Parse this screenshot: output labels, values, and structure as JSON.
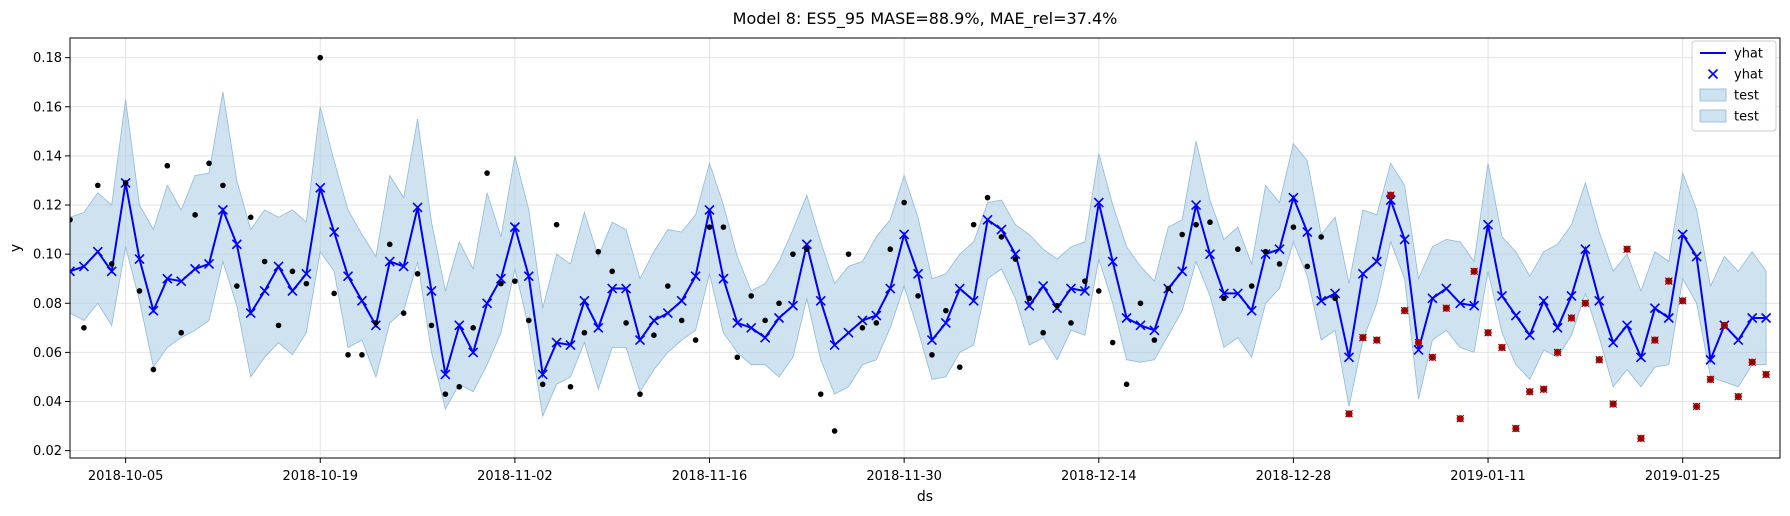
{
  "chart_data": {
    "type": "line",
    "title": "Model 8: ES5_95 MASE=88.9%, MAE_rel=37.4%",
    "xlabel": "ds",
    "ylabel": "y",
    "x_range": [
      "2018-10-01",
      "2019-02-01"
    ],
    "y_range": [
      0.017,
      0.188
    ],
    "x_tick_labels": [
      "2018-10-05",
      "2018-10-19",
      "2018-11-02",
      "2018-11-16",
      "2018-11-30",
      "2018-12-14",
      "2018-12-28",
      "2019-01-11",
      "2019-01-25"
    ],
    "y_ticks": [
      0.02,
      0.04,
      0.06,
      0.08,
      0.1,
      0.12,
      0.14,
      0.16,
      0.18
    ],
    "y_tick_labels": [
      "0.02",
      "0.04",
      "0.06",
      "0.08",
      "0.10",
      "0.12",
      "0.14",
      "0.16",
      "0.18"
    ],
    "grid": true,
    "legend_position": "top-right",
    "legend": [
      {
        "label": "yhat",
        "kind": "line"
      },
      {
        "label": "yhat",
        "kind": "marker-x"
      },
      {
        "label": "test",
        "kind": "band"
      },
      {
        "label": "test",
        "kind": "band"
      }
    ],
    "colors": {
      "forecast": "#0000ff",
      "band_fill": "#a6cbe3",
      "band_edge": "#8fbad8",
      "actual": "#000000",
      "test_marker": "#cc0000",
      "grid": "#e3e3e3"
    },
    "start_date": "2018-10-01",
    "yhat": [
      0.093,
      0.095,
      0.101,
      0.093,
      0.129,
      0.098,
      0.077,
      0.09,
      0.089,
      0.094,
      0.096,
      0.118,
      0.104,
      0.076,
      0.085,
      0.095,
      0.085,
      0.092,
      0.127,
      0.109,
      0.091,
      0.081,
      0.071,
      0.097,
      0.095,
      0.119,
      0.085,
      0.051,
      0.071,
      0.06,
      0.08,
      0.09,
      0.111,
      0.091,
      0.051,
      0.064,
      0.063,
      0.081,
      0.07,
      0.086,
      0.086,
      0.065,
      0.073,
      0.076,
      0.081,
      0.091,
      0.118,
      0.09,
      0.072,
      0.07,
      0.066,
      0.074,
      0.079,
      0.104,
      0.081,
      0.063,
      0.068,
      0.073,
      0.075,
      0.086,
      0.108,
      0.092,
      0.065,
      0.072,
      0.086,
      0.081,
      0.114,
      0.11,
      0.1,
      0.079,
      0.087,
      0.078,
      0.086,
      0.085,
      0.121,
      0.097,
      0.074,
      0.071,
      0.069,
      0.086,
      0.093,
      0.12,
      0.1,
      0.084,
      0.084,
      0.077,
      0.1,
      0.102,
      0.123,
      0.109,
      0.081,
      0.084,
      0.058,
      0.092,
      0.097,
      0.122,
      0.106,
      0.061,
      0.082,
      0.086,
      0.08,
      0.079,
      0.112,
      0.083,
      0.075,
      0.067,
      0.081,
      0.07,
      0.083,
      0.102,
      0.081,
      0.064,
      0.071,
      0.058,
      0.078,
      0.074,
      0.108,
      0.099,
      0.057,
      0.071,
      0.065,
      0.074,
      0.074
    ],
    "upper": [
      0.115,
      0.117,
      0.125,
      0.12,
      0.163,
      0.12,
      0.11,
      0.128,
      0.118,
      0.132,
      0.133,
      0.166,
      0.13,
      0.11,
      0.118,
      0.115,
      0.118,
      0.113,
      0.16,
      0.138,
      0.118,
      0.108,
      0.099,
      0.132,
      0.123,
      0.155,
      0.113,
      0.085,
      0.105,
      0.094,
      0.125,
      0.107,
      0.14,
      0.118,
      0.078,
      0.1,
      0.096,
      0.117,
      0.099,
      0.113,
      0.11,
      0.09,
      0.101,
      0.11,
      0.109,
      0.116,
      0.137,
      0.12,
      0.099,
      0.085,
      0.088,
      0.097,
      0.11,
      0.124,
      0.105,
      0.088,
      0.095,
      0.097,
      0.107,
      0.114,
      0.132,
      0.115,
      0.09,
      0.092,
      0.1,
      0.105,
      0.121,
      0.122,
      0.112,
      0.108,
      0.102,
      0.098,
      0.103,
      0.105,
      0.141,
      0.12,
      0.103,
      0.095,
      0.089,
      0.111,
      0.114,
      0.146,
      0.122,
      0.106,
      0.111,
      0.096,
      0.128,
      0.121,
      0.145,
      0.138,
      0.108,
      0.115,
      0.088,
      0.118,
      0.116,
      0.137,
      0.128,
      0.09,
      0.103,
      0.106,
      0.105,
      0.097,
      0.137,
      0.107,
      0.101,
      0.091,
      0.101,
      0.104,
      0.112,
      0.129,
      0.109,
      0.093,
      0.1,
      0.085,
      0.101,
      0.097,
      0.133,
      0.118,
      0.087,
      0.099,
      0.093,
      0.101,
      0.093
    ],
    "lower": [
      0.076,
      0.073,
      0.08,
      0.071,
      0.103,
      0.081,
      0.054,
      0.062,
      0.066,
      0.069,
      0.073,
      0.097,
      0.079,
      0.05,
      0.058,
      0.064,
      0.059,
      0.068,
      0.101,
      0.093,
      0.062,
      0.065,
      0.05,
      0.072,
      0.077,
      0.097,
      0.06,
      0.037,
      0.047,
      0.044,
      0.055,
      0.068,
      0.094,
      0.07,
      0.034,
      0.047,
      0.05,
      0.064,
      0.045,
      0.062,
      0.062,
      0.044,
      0.053,
      0.06,
      0.065,
      0.069,
      0.092,
      0.068,
      0.06,
      0.055,
      0.055,
      0.05,
      0.058,
      0.082,
      0.057,
      0.043,
      0.046,
      0.055,
      0.057,
      0.07,
      0.087,
      0.069,
      0.049,
      0.05,
      0.06,
      0.063,
      0.09,
      0.094,
      0.082,
      0.063,
      0.066,
      0.057,
      0.069,
      0.067,
      0.098,
      0.08,
      0.057,
      0.056,
      0.057,
      0.067,
      0.077,
      0.097,
      0.083,
      0.062,
      0.066,
      0.058,
      0.08,
      0.086,
      0.105,
      0.091,
      0.065,
      0.069,
      0.038,
      0.065,
      0.08,
      0.105,
      0.09,
      0.041,
      0.065,
      0.069,
      0.062,
      0.06,
      0.093,
      0.068,
      0.055,
      0.049,
      0.061,
      0.058,
      0.067,
      0.084,
      0.066,
      0.046,
      0.053,
      0.046,
      0.054,
      0.055,
      0.09,
      0.08,
      0.05,
      0.048,
      0.046,
      0.055,
      0.055
    ],
    "actual_train": [
      [
        0,
        0.114
      ],
      [
        1,
        0.07
      ],
      [
        2,
        0.128
      ],
      [
        3,
        0.096
      ],
      [
        4,
        0.129
      ],
      [
        5,
        0.085
      ],
      [
        6,
        0.053
      ],
      [
        7,
        0.136
      ],
      [
        8,
        0.068
      ],
      [
        9,
        0.116
      ],
      [
        10,
        0.137
      ],
      [
        11,
        0.128
      ],
      [
        12,
        0.087
      ],
      [
        13,
        0.115
      ],
      [
        14,
        0.097
      ],
      [
        15,
        0.071
      ],
      [
        16,
        0.093
      ],
      [
        17,
        0.088
      ],
      [
        18,
        0.18
      ],
      [
        19,
        0.084
      ],
      [
        20,
        0.059
      ],
      [
        21,
        0.059
      ],
      [
        22,
        0.072
      ],
      [
        23,
        0.104
      ],
      [
        24,
        0.076
      ],
      [
        25,
        0.092
      ],
      [
        26,
        0.071
      ],
      [
        27,
        0.043
      ],
      [
        28,
        0.046
      ],
      [
        29,
        0.07
      ],
      [
        30,
        0.133
      ],
      [
        31,
        0.088
      ],
      [
        32,
        0.089
      ],
      [
        33,
        0.073
      ],
      [
        34,
        0.047
      ],
      [
        35,
        0.112
      ],
      [
        36,
        0.046
      ],
      [
        37,
        0.068
      ],
      [
        38,
        0.101
      ],
      [
        39,
        0.093
      ],
      [
        40,
        0.072
      ],
      [
        41,
        0.043
      ],
      [
        42,
        0.067
      ],
      [
        43,
        0.087
      ],
      [
        44,
        0.073
      ],
      [
        45,
        0.065
      ],
      [
        46,
        0.111
      ],
      [
        47,
        0.111
      ],
      [
        48,
        0.058
      ],
      [
        49,
        0.083
      ],
      [
        50,
        0.073
      ],
      [
        51,
        0.08
      ],
      [
        52,
        0.1
      ],
      [
        53,
        0.102
      ],
      [
        54,
        0.043
      ],
      [
        55,
        0.028
      ],
      [
        56,
        0.1
      ],
      [
        57,
        0.07
      ],
      [
        58,
        0.072
      ],
      [
        59,
        0.102
      ],
      [
        60,
        0.121
      ],
      [
        61,
        0.083
      ],
      [
        62,
        0.059
      ],
      [
        63,
        0.077
      ],
      [
        64,
        0.054
      ],
      [
        65,
        0.112
      ],
      [
        66,
        0.123
      ],
      [
        67,
        0.107
      ],
      [
        68,
        0.098
      ],
      [
        69,
        0.082
      ],
      [
        70,
        0.068
      ],
      [
        71,
        0.079
      ],
      [
        72,
        0.072
      ],
      [
        73,
        0.089
      ],
      [
        74,
        0.085
      ],
      [
        75,
        0.064
      ],
      [
        76,
        0.047
      ],
      [
        77,
        0.08
      ],
      [
        78,
        0.065
      ],
      [
        79,
        0.086
      ],
      [
        80,
        0.108
      ],
      [
        81,
        0.112
      ],
      [
        82,
        0.113
      ],
      [
        83,
        0.082
      ],
      [
        84,
        0.102
      ],
      [
        85,
        0.087
      ],
      [
        86,
        0.101
      ],
      [
        87,
        0.096
      ],
      [
        88,
        0.111
      ],
      [
        89,
        0.095
      ],
      [
        90,
        0.107
      ],
      [
        91,
        0.082
      ]
    ],
    "actual_test": [
      [
        92,
        0.035
      ],
      [
        93,
        0.066
      ],
      [
        94,
        0.065
      ],
      [
        95,
        0.124
      ],
      [
        96,
        0.077
      ],
      [
        97,
        0.064
      ],
      [
        98,
        0.058
      ],
      [
        99,
        0.078
      ],
      [
        100,
        0.033
      ],
      [
        101,
        0.093
      ],
      [
        102,
        0.068
      ],
      [
        103,
        0.062
      ],
      [
        104,
        0.029
      ],
      [
        105,
        0.044
      ],
      [
        106,
        0.045
      ],
      [
        107,
        0.06
      ],
      [
        108,
        0.074
      ],
      [
        109,
        0.08
      ],
      [
        110,
        0.057
      ],
      [
        111,
        0.039
      ],
      [
        112,
        0.102
      ],
      [
        113,
        0.025
      ],
      [
        114,
        0.065
      ],
      [
        115,
        0.089
      ],
      [
        116,
        0.081
      ],
      [
        117,
        0.038
      ],
      [
        118,
        0.049
      ],
      [
        119,
        0.071
      ],
      [
        120,
        0.042
      ],
      [
        121,
        0.056
      ],
      [
        122,
        0.051
      ]
    ]
  }
}
